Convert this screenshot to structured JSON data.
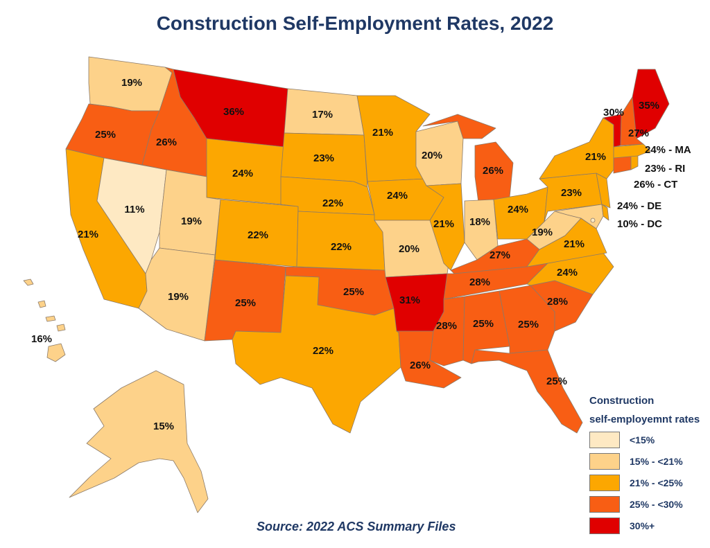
{
  "title": "Construction Self-Employment Rates, 2022",
  "source": "Source: 2022 ACS Summary Files",
  "colors": {
    "c1": "#fee9c3",
    "c2": "#fdd28a",
    "c3": "#fca701",
    "c4": "#f85e14",
    "c5": "#e00000",
    "border": "#8a7a6a"
  },
  "legend": {
    "title_line1": "Construction",
    "title_line2": "self-employemnt rates",
    "items": [
      {
        "label": "<15%",
        "cls": "c1"
      },
      {
        "label": "15% - <21%",
        "cls": "c2"
      },
      {
        "label": "21% - <25%",
        "cls": "c3"
      },
      {
        "label": "25% - <30%",
        "cls": "c4"
      },
      {
        "label": "30%+",
        "cls": "c5"
      }
    ]
  },
  "states": [
    {
      "id": "WA",
      "label": "19%",
      "cls": "c2"
    },
    {
      "id": "OR",
      "label": "25%",
      "cls": "c4"
    },
    {
      "id": "CA",
      "label": "21%",
      "cls": "c3"
    },
    {
      "id": "NV",
      "label": "11%",
      "cls": "c1"
    },
    {
      "id": "ID",
      "label": "26%",
      "cls": "c4"
    },
    {
      "id": "MT",
      "label": "36%",
      "cls": "c5"
    },
    {
      "id": "WY",
      "label": "24%",
      "cls": "c3"
    },
    {
      "id": "UT",
      "label": "19%",
      "cls": "c2"
    },
    {
      "id": "AZ",
      "label": "19%",
      "cls": "c2"
    },
    {
      "id": "CO",
      "label": "22%",
      "cls": "c3"
    },
    {
      "id": "NM",
      "label": "25%",
      "cls": "c4"
    },
    {
      "id": "ND",
      "label": "17%",
      "cls": "c2"
    },
    {
      "id": "SD",
      "label": "23%",
      "cls": "c3"
    },
    {
      "id": "NE",
      "label": "22%",
      "cls": "c3"
    },
    {
      "id": "KS",
      "label": "22%",
      "cls": "c3"
    },
    {
      "id": "OK",
      "label": "25%",
      "cls": "c4"
    },
    {
      "id": "TX",
      "label": "22%",
      "cls": "c3"
    },
    {
      "id": "MN",
      "label": "21%",
      "cls": "c3"
    },
    {
      "id": "IA",
      "label": "24%",
      "cls": "c3"
    },
    {
      "id": "MO",
      "label": "20%",
      "cls": "c2"
    },
    {
      "id": "AR",
      "label": "31%",
      "cls": "c5"
    },
    {
      "id": "LA",
      "label": "26%",
      "cls": "c4"
    },
    {
      "id": "WI",
      "label": "20%",
      "cls": "c2"
    },
    {
      "id": "IL",
      "label": "21%",
      "cls": "c3"
    },
    {
      "id": "MI",
      "label": "26%",
      "cls": "c4"
    },
    {
      "id": "IN",
      "label": "18%",
      "cls": "c2"
    },
    {
      "id": "OH",
      "label": "24%",
      "cls": "c3"
    },
    {
      "id": "KY",
      "label": "27%",
      "cls": "c4"
    },
    {
      "id": "TN",
      "label": "28%",
      "cls": "c4"
    },
    {
      "id": "MS",
      "label": "28%",
      "cls": "c4"
    },
    {
      "id": "AL",
      "label": "25%",
      "cls": "c4"
    },
    {
      "id": "GA",
      "label": "25%",
      "cls": "c4"
    },
    {
      "id": "FL",
      "label": "25%",
      "cls": "c4"
    },
    {
      "id": "SC",
      "label": "28%",
      "cls": "c4"
    },
    {
      "id": "NC",
      "label": "24%",
      "cls": "c3"
    },
    {
      "id": "VA",
      "label": "21%",
      "cls": "c3"
    },
    {
      "id": "WV",
      "label": "19%",
      "cls": "c2"
    },
    {
      "id": "PA",
      "label": "23%",
      "cls": "c3"
    },
    {
      "id": "NY",
      "label": "21%",
      "cls": "c3"
    },
    {
      "id": "VT",
      "label": "30%",
      "cls": "c5"
    },
    {
      "id": "NH",
      "label": "27%",
      "cls": "c4"
    },
    {
      "id": "ME",
      "label": "35%",
      "cls": "c5"
    },
    {
      "id": "MA",
      "label": "24% - MA",
      "cls": "c3"
    },
    {
      "id": "RI",
      "label": "23% - RI",
      "cls": "c3"
    },
    {
      "id": "CT",
      "label": "26% - CT",
      "cls": "c4"
    },
    {
      "id": "NJ",
      "label": "",
      "cls": "c3"
    },
    {
      "id": "DE",
      "label": "24% - DE",
      "cls": "c3"
    },
    {
      "id": "MD",
      "label": "",
      "cls": "c2"
    },
    {
      "id": "DC",
      "label": "10% - DC",
      "cls": "c1"
    },
    {
      "id": "HI",
      "label": "16%",
      "cls": "c2"
    },
    {
      "id": "AK",
      "label": "15%",
      "cls": "c2"
    }
  ]
}
